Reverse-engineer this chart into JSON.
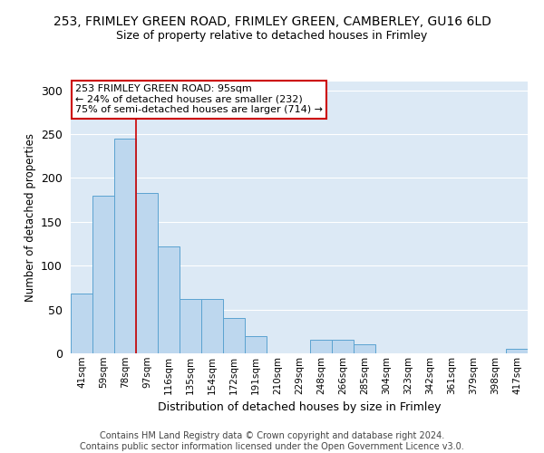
{
  "title_line1": "253, FRIMLEY GREEN ROAD, FRIMLEY GREEN, CAMBERLEY, GU16 6LD",
  "title_line2": "Size of property relative to detached houses in Frimley",
  "xlabel": "Distribution of detached houses by size in Frimley",
  "ylabel": "Number of detached properties",
  "categories": [
    "41sqm",
    "59sqm",
    "78sqm",
    "97sqm",
    "116sqm",
    "135sqm",
    "154sqm",
    "172sqm",
    "191sqm",
    "210sqm",
    "229sqm",
    "248sqm",
    "266sqm",
    "285sqm",
    "304sqm",
    "323sqm",
    "342sqm",
    "361sqm",
    "379sqm",
    "398sqm",
    "417sqm"
  ],
  "values": [
    68,
    180,
    245,
    183,
    122,
    62,
    62,
    40,
    20,
    0,
    0,
    15,
    15,
    10,
    0,
    0,
    0,
    0,
    0,
    0,
    5
  ],
  "bar_color": "#bdd7ee",
  "bar_edge_color": "#5ba3d0",
  "annotation_text": "253 FRIMLEY GREEN ROAD: 95sqm\n← 24% of detached houses are smaller (232)\n75% of semi-detached houses are larger (714) →",
  "annotation_box_color": "#ffffff",
  "annotation_box_edge_color": "#cc0000",
  "vline_color": "#cc0000",
  "vline_x": 2.5,
  "ylim": [
    0,
    310
  ],
  "yticks": [
    0,
    50,
    100,
    150,
    200,
    250,
    300
  ],
  "background_color": "#dce9f5",
  "footer": "Contains HM Land Registry data © Crown copyright and database right 2024.\nContains public sector information licensed under the Open Government Licence v3.0.",
  "title_fontsize": 10,
  "subtitle_fontsize": 9,
  "xlabel_fontsize": 9,
  "ylabel_fontsize": 8.5,
  "footer_fontsize": 7,
  "annotation_fontsize": 8
}
